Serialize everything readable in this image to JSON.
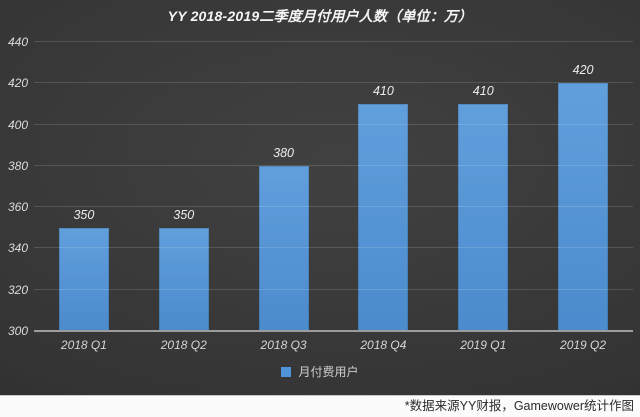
{
  "title": "YY 2018-2019二季度月付用户人数（单位：万）",
  "footer": {
    "note": "*数据来源YY财报，Gamewower统计作图"
  },
  "colors": {
    "bar": "#4F93D8",
    "background": "#343434",
    "axis_line": "#9C9C9C",
    "footer_background": "#FBFBFB"
  },
  "chart_data": {
    "type": "bar",
    "title": "YY 2018-2019二季度月付用户人数（单位：万）",
    "categories": [
      "2018 Q1",
      "2018 Q2",
      "2018 Q3",
      "2018 Q4",
      "2019 Q1",
      "2019 Q2"
    ],
    "series": [
      {
        "name": "月付费用户",
        "values": [
          350,
          350,
          380,
          410,
          410,
          420
        ],
        "color": "#4F93D8"
      }
    ],
    "xlabel": "",
    "ylabel": "",
    "ylim": [
      300,
      440
    ],
    "yticks": [
      300,
      320,
      340,
      360,
      380,
      400,
      420,
      440
    ],
    "grid": true,
    "legend_position": "bottom",
    "data_labels": true
  }
}
